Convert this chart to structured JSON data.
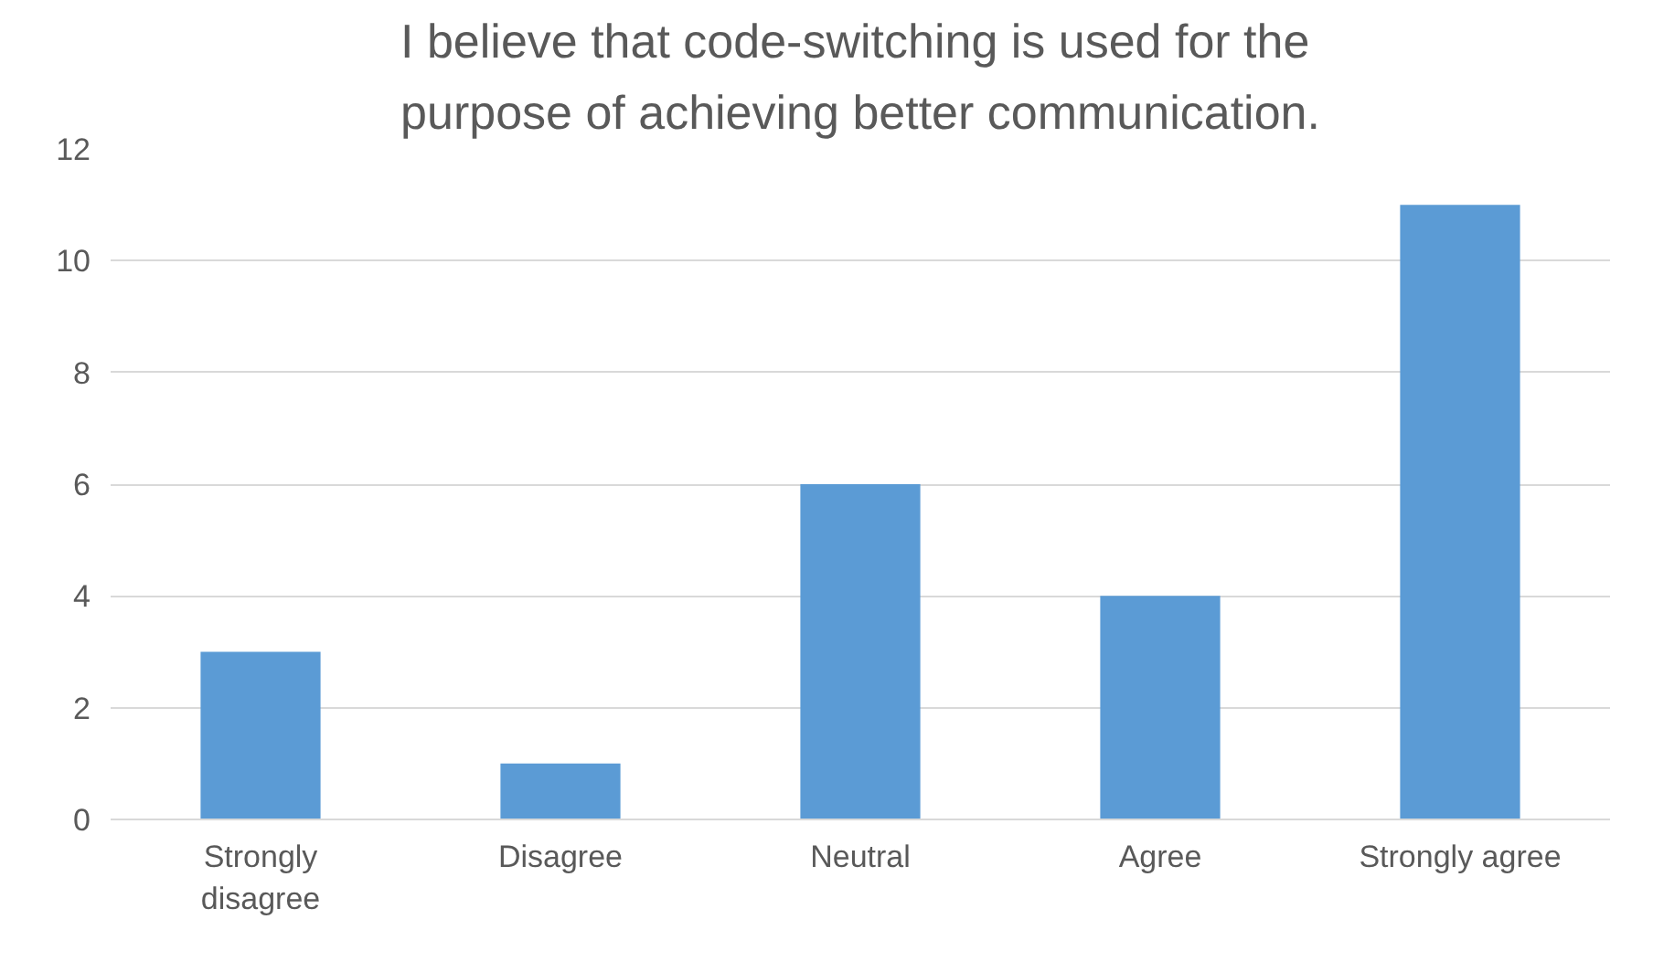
{
  "chart_data": {
    "type": "bar",
    "title": "I believe that code-switching is used for the purpose of achieving better communication.",
    "categories": [
      "Strongly disagree",
      "Disagree",
      "Neutral",
      "Agree",
      "Strongly agree"
    ],
    "values": [
      3,
      1,
      6,
      4,
      11
    ],
    "color": "#5b9bd5",
    "ylim": [
      0,
      12
    ],
    "yticks": [
      0,
      2,
      4,
      6,
      8,
      10,
      12
    ],
    "grid": "y"
  }
}
